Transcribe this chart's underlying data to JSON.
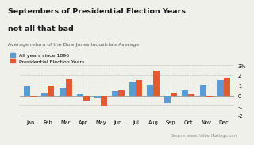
{
  "months": [
    "Jan",
    "Feb",
    "Mar",
    "Apr",
    "May",
    "Jun",
    "Jul",
    "Aug",
    "Sep",
    "Oct",
    "Nov",
    "Dec"
  ],
  "all_years": [
    0.9,
    0.2,
    0.75,
    0.1,
    -0.25,
    0.45,
    1.4,
    1.1,
    -0.7,
    0.5,
    1.1,
    1.5
  ],
  "election_years": [
    -0.15,
    1.0,
    1.65,
    -0.5,
    -1.05,
    0.55,
    1.5,
    2.5,
    0.3,
    0.1,
    -0.1,
    1.8
  ],
  "bar_color_all": "#5b9bd5",
  "bar_color_election": "#e05a32",
  "title_line1": "Septembers of Presidential Election Years",
  "title_line2": "not all that bad",
  "subtitle": "Average return of the Dow Jones Industrials Average",
  "legend_all": "All years since 1896",
  "legend_election": "Presidential Election Years",
  "source": "Source: www.HulbertRatings.com",
  "ylim": [
    -2,
    3
  ],
  "yticks": [
    -2,
    -1,
    0,
    1,
    2,
    3
  ],
  "ytick_labels": [
    "-2",
    "-1",
    "0",
    "1",
    "2",
    "3%"
  ],
  "background_color": "#f0f0eb"
}
